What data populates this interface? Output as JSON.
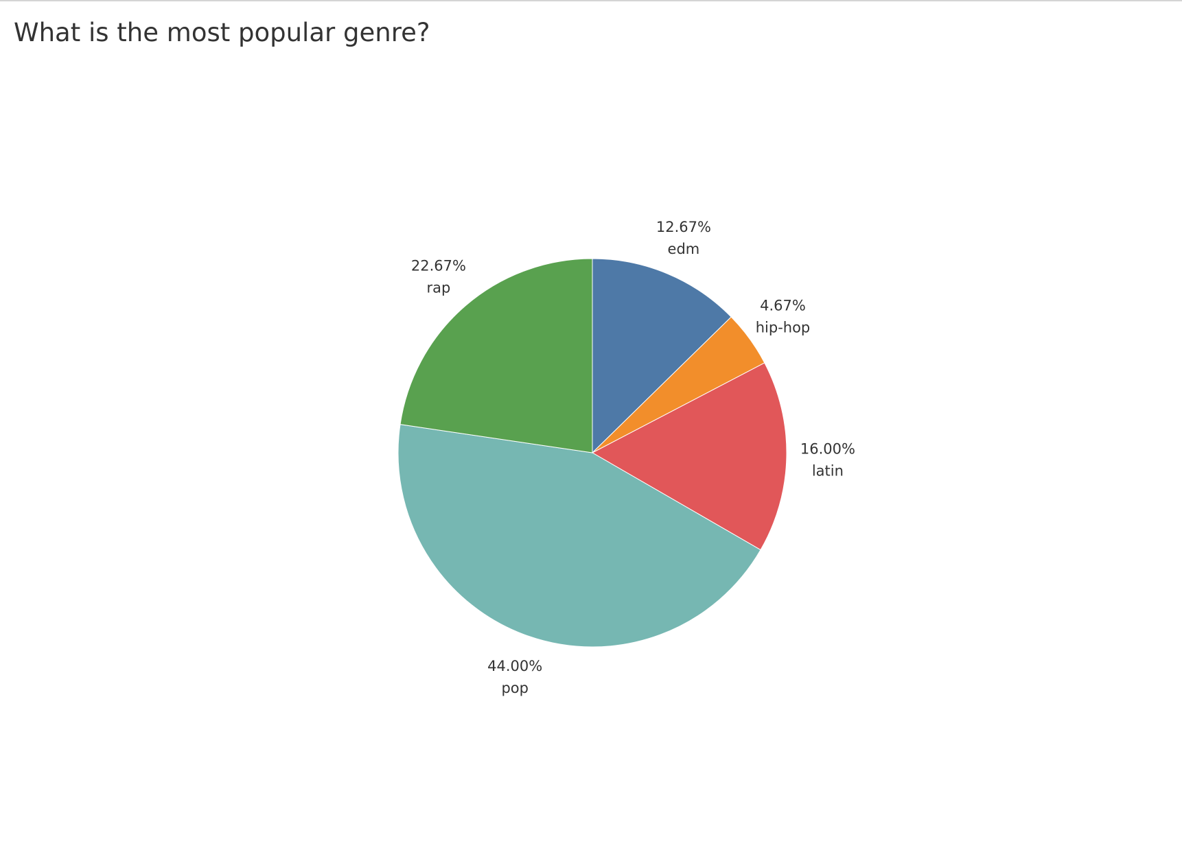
{
  "chart_data": {
    "type": "pie",
    "title": "What is the most popular genre?",
    "slices": [
      {
        "label": "edm",
        "value": 12.67,
        "value_label": "12.67%",
        "color": "#4e79a7"
      },
      {
        "label": "hip-hop",
        "value": 4.67,
        "value_label": "4.67%",
        "color": "#f28e2b"
      },
      {
        "label": "latin",
        "value": 16.0,
        "value_label": "16.00%",
        "color": "#e15759"
      },
      {
        "label": "pop",
        "value": 44.0,
        "value_label": "44.00%",
        "color": "#76b7b2"
      },
      {
        "label": "rap",
        "value": 22.67,
        "value_label": "22.67%",
        "color": "#59a14f"
      }
    ],
    "start_angle": "12 o'clock",
    "direction": "clockwise",
    "legend": "none"
  }
}
